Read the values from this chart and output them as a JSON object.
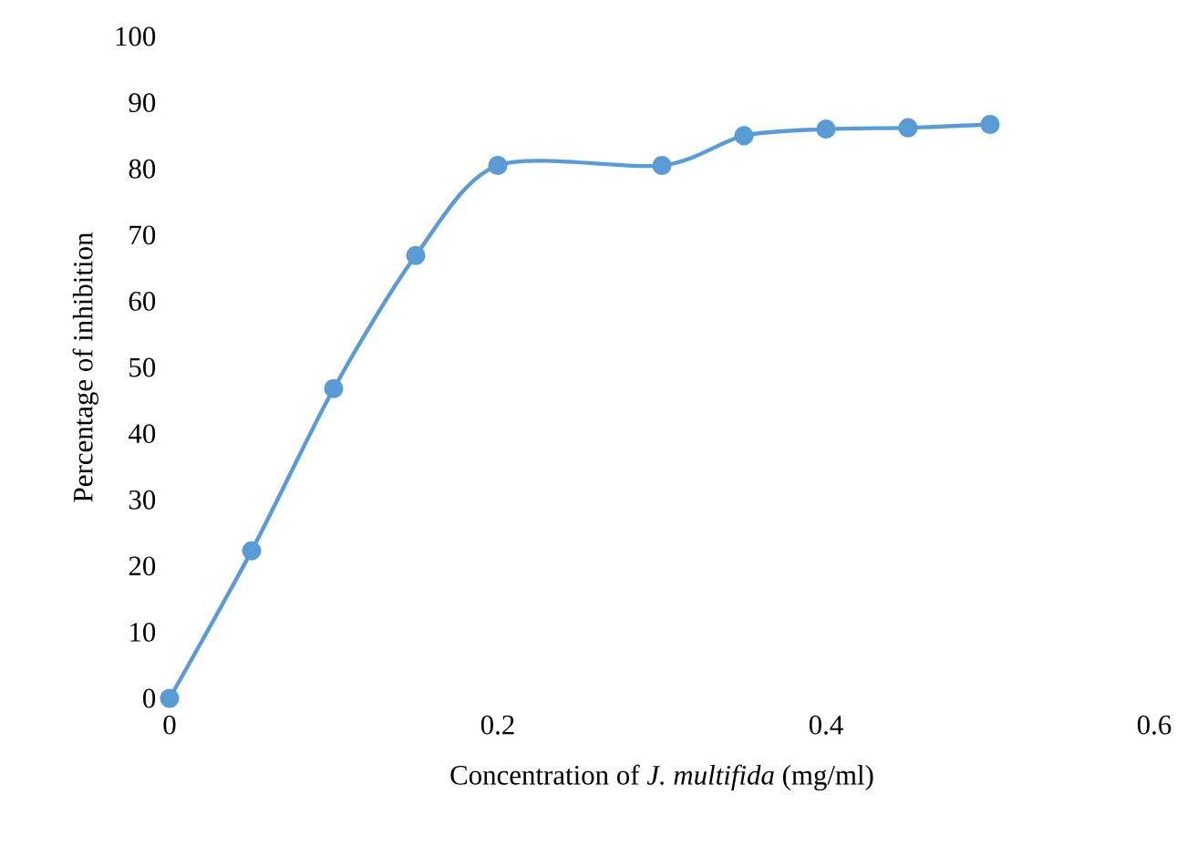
{
  "chart_data": {
    "type": "line",
    "xlabel": "Concentration of *J. multifida* (mg/ml)",
    "ylabel": "Percentage of inhibition",
    "x": [
      0,
      0.05,
      0.1,
      0.15,
      0.2,
      0.3,
      0.35,
      0.4,
      0.45,
      0.5
    ],
    "series": [
      {
        "color": "#5b9bd5",
        "values": [
          0,
          22.3,
          46.8,
          66.9,
          80.5,
          80.5,
          85,
          86,
          86.2,
          86.7
        ]
      }
    ],
    "xlim": [
      0,
      0.6
    ],
    "xticks": [
      0,
      0.2,
      0.4,
      0.6
    ],
    "ylim": [
      0,
      100
    ],
    "yticks": [
      0,
      10,
      20,
      30,
      40,
      50,
      60,
      70,
      80,
      90,
      100
    ],
    "marker": "circle",
    "line_style": "solid"
  }
}
